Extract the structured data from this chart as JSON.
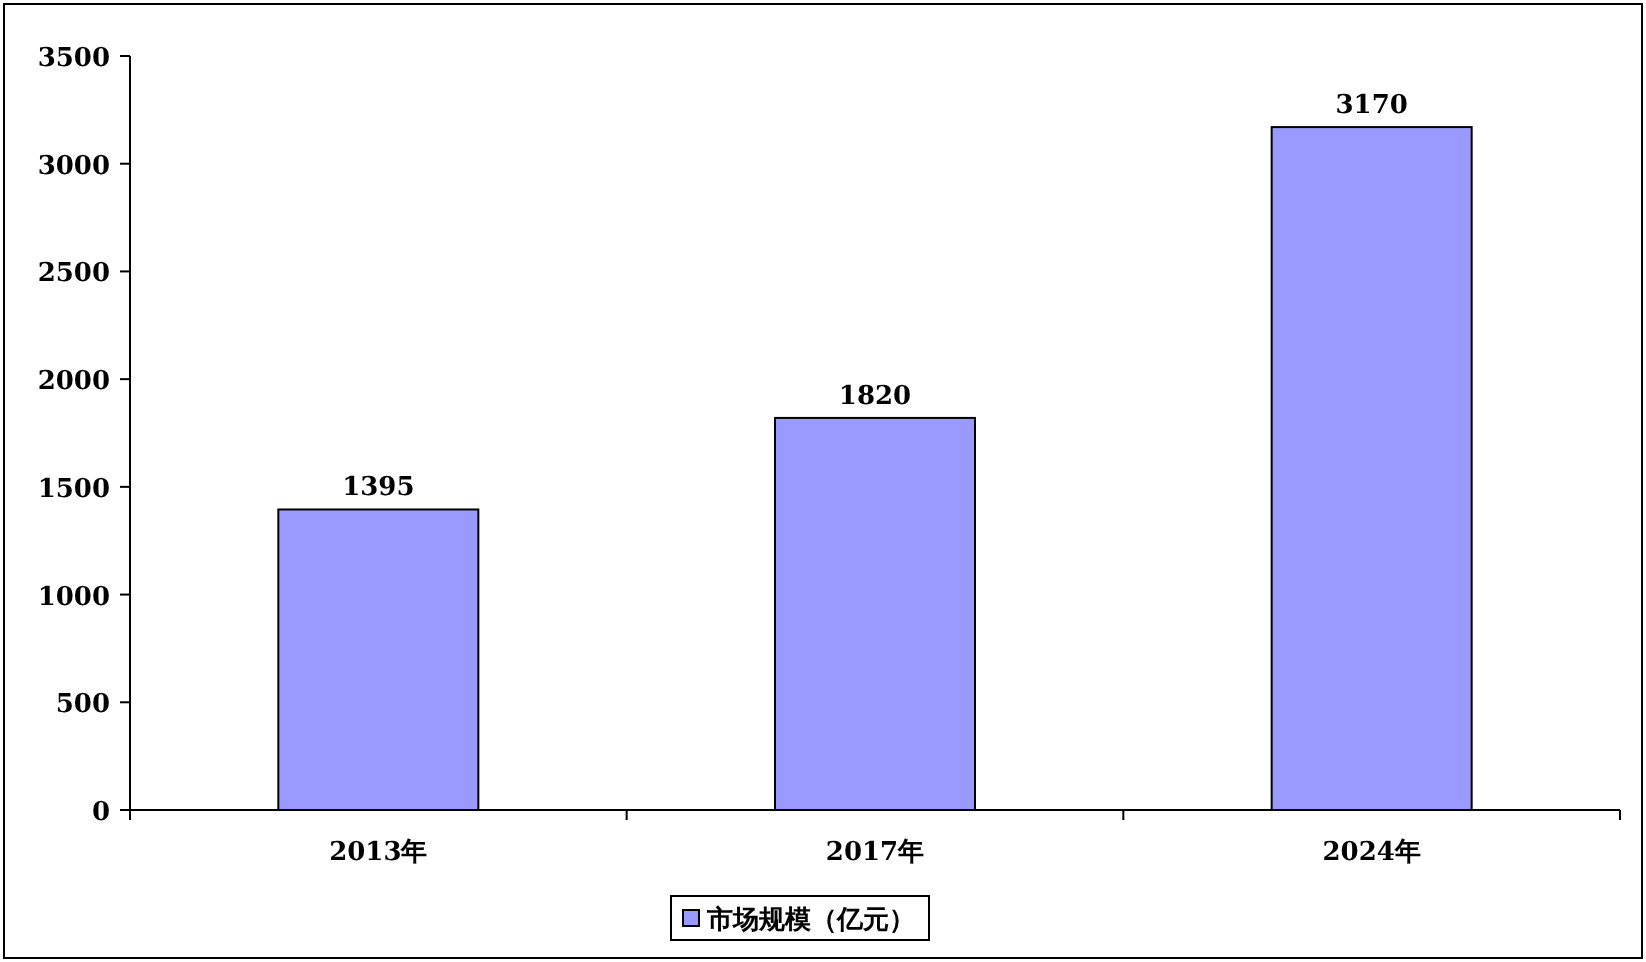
{
  "chart_data": {
    "type": "bar",
    "categories": [
      "2013年",
      "2017年",
      "2024年"
    ],
    "series": [
      {
        "name": "市场规模（亿元）",
        "color": "#9999ff",
        "values": [
          1395,
          1820,
          3170
        ]
      }
    ],
    "ylim": [
      0,
      3500
    ],
    "yticks": [
      0,
      500,
      1000,
      1500,
      2000,
      2500,
      3000,
      3500
    ],
    "data_labels": true,
    "legend": "bottom"
  }
}
